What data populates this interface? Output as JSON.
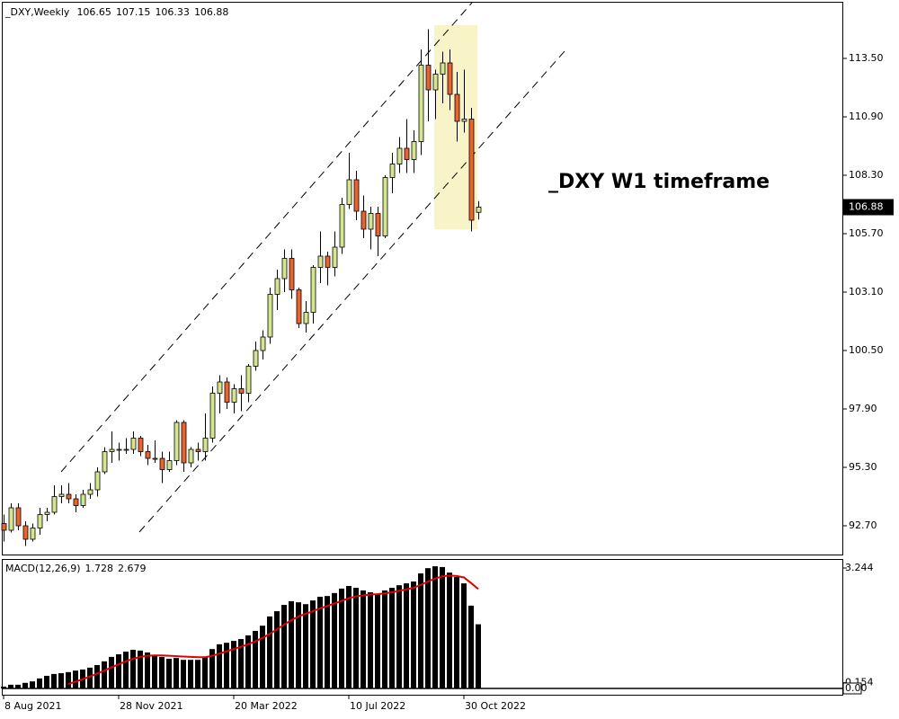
{
  "chart_data": [
    {
      "type": "candlestick",
      "title": "_DXY,Weekly",
      "x": [
        "8 Aug 2021",
        null,
        null,
        null,
        null,
        null,
        null,
        null,
        null,
        null,
        null,
        null,
        null,
        null,
        null,
        null,
        "28 Nov 2021",
        null,
        null,
        null,
        null,
        null,
        null,
        null,
        null,
        null,
        null,
        null,
        null,
        null,
        null,
        null,
        "20 Mar 2022",
        null,
        null,
        null,
        null,
        null,
        null,
        null,
        null,
        null,
        null,
        null,
        null,
        null,
        null,
        null,
        "10 Jul 2022",
        null,
        null,
        null,
        null,
        null,
        null,
        null,
        null,
        null,
        null,
        null,
        null,
        null,
        null,
        null,
        "30 Oct 2022",
        null,
        null
      ],
      "open": [
        92.8,
        92.5,
        93.5,
        92.7,
        92.1,
        92.6,
        93.2,
        93.3,
        94.0,
        94.1,
        93.9,
        93.6,
        94.1,
        94.3,
        95.1,
        96.0,
        96.1,
        96.1,
        96.1,
        96.6,
        96.0,
        95.7,
        95.7,
        95.2,
        95.6,
        97.3,
        95.5,
        96.1,
        96.0,
        96.6,
        98.6,
        99.1,
        98.2,
        98.8,
        98.6,
        99.8,
        100.5,
        101.1,
        103.0,
        103.7,
        104.6,
        103.2,
        101.7,
        102.2,
        104.2,
        104.7,
        104.2,
        105.1,
        107.0,
        108.1,
        106.7,
        105.9,
        106.6,
        105.6,
        108.2,
        108.8,
        109.5,
        109.0,
        109.8,
        113.2,
        112.1,
        112.8,
        113.3,
        111.9,
        110.7,
        110.8,
        106.65
      ],
      "high": [
        93.2,
        93.7,
        93.7,
        92.9,
        92.8,
        93.5,
        93.5,
        94.5,
        94.5,
        94.6,
        94.1,
        94.3,
        94.6,
        95.3,
        96.2,
        96.9,
        96.4,
        96.6,
        96.9,
        96.7,
        96.3,
        96.5,
        96.0,
        96.0,
        97.4,
        97.4,
        96.2,
        96.4,
        97.7,
        98.9,
        99.4,
        99.3,
        99.0,
        99.4,
        99.9,
        100.9,
        101.4,
        103.3,
        104.1,
        105.0,
        105.0,
        103.3,
        102.7,
        104.3,
        105.8,
        104.9,
        105.8,
        107.3,
        109.3,
        108.5,
        107.4,
        106.9,
        106.9,
        108.3,
        109.3,
        110.0,
        110.8,
        110.3,
        113.9,
        114.8,
        113.0,
        113.8,
        113.9,
        112.9,
        113.0,
        111.3,
        107.15
      ],
      "low": [
        92.0,
        92.4,
        92.5,
        91.8,
        92.0,
        92.3,
        92.9,
        93.2,
        93.7,
        93.7,
        93.3,
        93.5,
        93.9,
        94.0,
        95.0,
        95.5,
        95.6,
        95.9,
        95.9,
        95.8,
        95.4,
        95.5,
        94.6,
        95.1,
        95.4,
        95.1,
        95.3,
        95.6,
        95.6,
        96.4,
        97.7,
        97.9,
        97.7,
        97.8,
        98.2,
        99.6,
        100.1,
        100.8,
        102.3,
        103.1,
        102.8,
        101.5,
        101.3,
        101.7,
        103.5,
        103.4,
        103.8,
        104.8,
        106.8,
        106.3,
        105.5,
        105.0,
        104.7,
        105.5,
        107.5,
        108.4,
        108.4,
        108.4,
        109.2,
        110.7,
        110.8,
        111.5,
        111.2,
        109.8,
        110.2,
        105.8,
        106.33
      ],
      "close": [
        92.5,
        93.5,
        92.7,
        92.1,
        92.6,
        93.2,
        93.3,
        94.0,
        94.1,
        93.9,
        93.6,
        94.1,
        94.3,
        95.1,
        96.0,
        96.1,
        96.1,
        96.1,
        96.6,
        96.0,
        95.7,
        95.7,
        95.2,
        95.6,
        97.3,
        95.5,
        96.1,
        96.0,
        96.6,
        98.6,
        99.1,
        98.2,
        98.8,
        98.6,
        99.8,
        100.5,
        101.1,
        103.0,
        103.7,
        104.6,
        103.2,
        101.7,
        102.2,
        104.2,
        104.7,
        104.2,
        105.1,
        107.0,
        108.1,
        106.7,
        105.9,
        106.6,
        105.6,
        108.2,
        108.8,
        109.5,
        109.0,
        109.8,
        113.2,
        112.1,
        112.8,
        113.3,
        111.9,
        110.7,
        110.8,
        106.3,
        106.88
      ],
      "up_color": "#d4e690",
      "down_color": "#e8652e",
      "ylim": [
        91.42,
        115.98
      ],
      "yticks": [
        {
          "value": 92.7,
          "label": "92.70"
        },
        {
          "value": 95.3,
          "label": "95.30"
        },
        {
          "value": 97.9,
          "label": "97.90"
        },
        {
          "value": 100.5,
          "label": "100.50"
        },
        {
          "value": 103.1,
          "label": "103.10"
        },
        {
          "value": 105.7,
          "label": "105.70"
        },
        {
          "value": 108.3,
          "label": "108.30"
        },
        {
          "value": 110.9,
          "label": "110.90"
        },
        {
          "value": 113.5,
          "label": "113.50"
        }
      ],
      "annotation": "_DXY W1 timeframe"
    },
    {
      "type": "macd",
      "title": "MACD(12,26,9)",
      "values": [
        0.05,
        0.1,
        0.1,
        0.15,
        0.19,
        0.27,
        0.34,
        0.39,
        0.41,
        0.44,
        0.48,
        0.51,
        0.56,
        0.63,
        0.73,
        0.85,
        0.92,
        0.99,
        1.04,
        1.02,
        0.97,
        0.9,
        0.85,
        0.8,
        0.82,
        0.77,
        0.77,
        0.77,
        0.85,
        1.06,
        1.19,
        1.23,
        1.28,
        1.33,
        1.43,
        1.55,
        1.69,
        1.94,
        2.08,
        2.25,
        2.35,
        2.32,
        2.27,
        2.37,
        2.47,
        2.49,
        2.57,
        2.69,
        2.76,
        2.71,
        2.64,
        2.59,
        2.54,
        2.64,
        2.71,
        2.78,
        2.83,
        2.88,
        3.1,
        3.24,
        3.29,
        3.27,
        3.12,
        3.0,
        2.83,
        2.23,
        1.728
      ],
      "color": "#000000",
      "signal": {
        "color": "#e00000",
        "values": [
          null,
          null,
          null,
          null,
          null,
          null,
          null,
          null,
          null,
          0.12,
          0.18,
          0.25,
          0.32,
          0.4,
          0.48,
          0.57,
          0.65,
          0.73,
          0.8,
          0.85,
          0.88,
          0.89,
          0.89,
          0.88,
          0.87,
          0.86,
          0.85,
          0.84,
          0.84,
          0.88,
          0.94,
          1.0,
          1.06,
          1.12,
          1.19,
          1.27,
          1.36,
          1.47,
          1.59,
          1.72,
          1.84,
          1.94,
          2.01,
          2.08,
          2.16,
          2.22,
          2.29,
          2.36,
          2.43,
          2.48,
          2.51,
          2.53,
          2.54,
          2.56,
          2.59,
          2.63,
          2.67,
          2.71,
          2.79,
          2.88,
          2.96,
          3.02,
          3.04,
          3.03,
          2.99,
          2.84,
          2.679
        ]
      },
      "ylim": [
        0,
        3.244
      ],
      "yticks": [
        3.244,
        0.154,
        {
          "value": 0,
          "label": "0.00"
        }
      ]
    }
  ]
}
